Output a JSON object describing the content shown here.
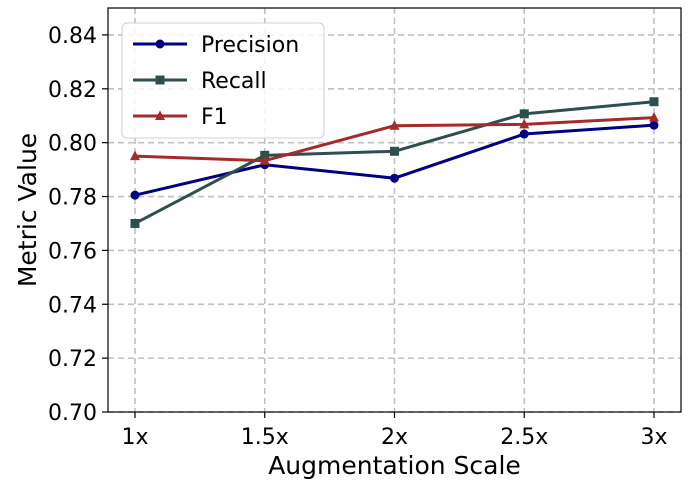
{
  "chart_data": {
    "type": "line",
    "xlabel": "Augmentation Scale",
    "ylabel": "Metric Value",
    "categories": [
      "1x",
      "1.5x",
      "2x",
      "2.5x",
      "3x"
    ],
    "ylim": [
      0.7,
      0.85
    ],
    "yticks": [
      "0.70",
      "0.72",
      "0.74",
      "0.76",
      "0.78",
      "0.80",
      "0.82",
      "0.84"
    ],
    "grid": true,
    "legend_position": "top-left",
    "series": [
      {
        "name": "Precision",
        "marker": "circle",
        "color": "#000080",
        "values": [
          0.7805,
          0.7918,
          0.7868,
          0.8032,
          0.8065
        ]
      },
      {
        "name": "Recall",
        "marker": "square",
        "color": "#2f4f4f",
        "values": [
          0.77,
          0.7953,
          0.7968,
          0.8107,
          0.8152
        ]
      },
      {
        "name": "F1",
        "marker": "triangle",
        "color": "#a52a2a",
        "values": [
          0.795,
          0.7933,
          0.8063,
          0.8068,
          0.8093
        ]
      }
    ]
  }
}
